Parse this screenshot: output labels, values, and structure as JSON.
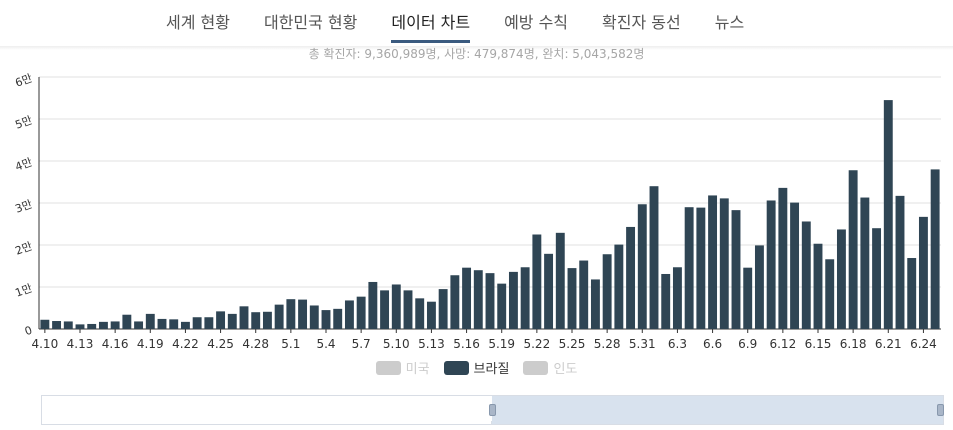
{
  "nav": {
    "tabs": [
      "세계 현황",
      "대한민국 현황",
      "데이터 차트",
      "예방 수칙",
      "확진자 동선",
      "뉴스"
    ],
    "active_tab": "데이터 차트"
  },
  "summary": "총 확진자: 9,360,989명, 사망: 479,874명, 완치: 5,043,582명",
  "legend": [
    {
      "label": "미국",
      "active": false
    },
    {
      "label": "브라질",
      "active": true
    },
    {
      "label": "인도",
      "active": false
    }
  ],
  "colors": {
    "bar": "#2f4554",
    "grid": "#e0e0e0",
    "axis": "#333333",
    "legend_off": "#cccccc",
    "slider_fill": "#d8e2ee"
  },
  "chart_data": {
    "type": "bar",
    "series": [
      {
        "name": "브라질",
        "values": [
          2200,
          1900,
          1800,
          1100,
          1200,
          1700,
          1800,
          3400,
          1800,
          3600,
          2400,
          2300,
          1700,
          2800,
          2800,
          4200,
          3600,
          5400,
          4000,
          4100,
          5800,
          7100,
          7000,
          5600,
          4500,
          4800,
          6800,
          7700,
          11200,
          9200,
          10600,
          9200,
          7300,
          6500,
          9500,
          12800,
          14600,
          14000,
          13300,
          10800,
          13600,
          14700,
          22500,
          17900,
          22900,
          14500,
          16300,
          11800,
          17800,
          20100,
          24300,
          29700,
          34000,
          13100,
          14700,
          29000,
          28900,
          31800,
          31100,
          28300,
          14600,
          19900,
          30600,
          33600,
          30100,
          25600,
          20300,
          16600,
          23700,
          37800,
          31300,
          24000,
          54500,
          31700,
          16900,
          26700,
          38000
        ]
      }
    ],
    "x_tick_labels": [
      "4.10",
      "4.13",
      "4.16",
      "4.19",
      "4.22",
      "4.25",
      "4.28",
      "5.1",
      "5.4",
      "5.7",
      "5.10",
      "5.13",
      "5.16",
      "5.19",
      "5.22",
      "5.25",
      "5.28",
      "5.31",
      "6.3",
      "6.6",
      "6.9",
      "6.12",
      "6.15",
      "6.18",
      "6.21",
      "6.24"
    ],
    "y_tick_labels": [
      "0",
      "1만",
      "2만",
      "3만",
      "4만",
      "5만",
      "6만"
    ],
    "ylim": [
      0,
      60000
    ],
    "grid": true
  }
}
